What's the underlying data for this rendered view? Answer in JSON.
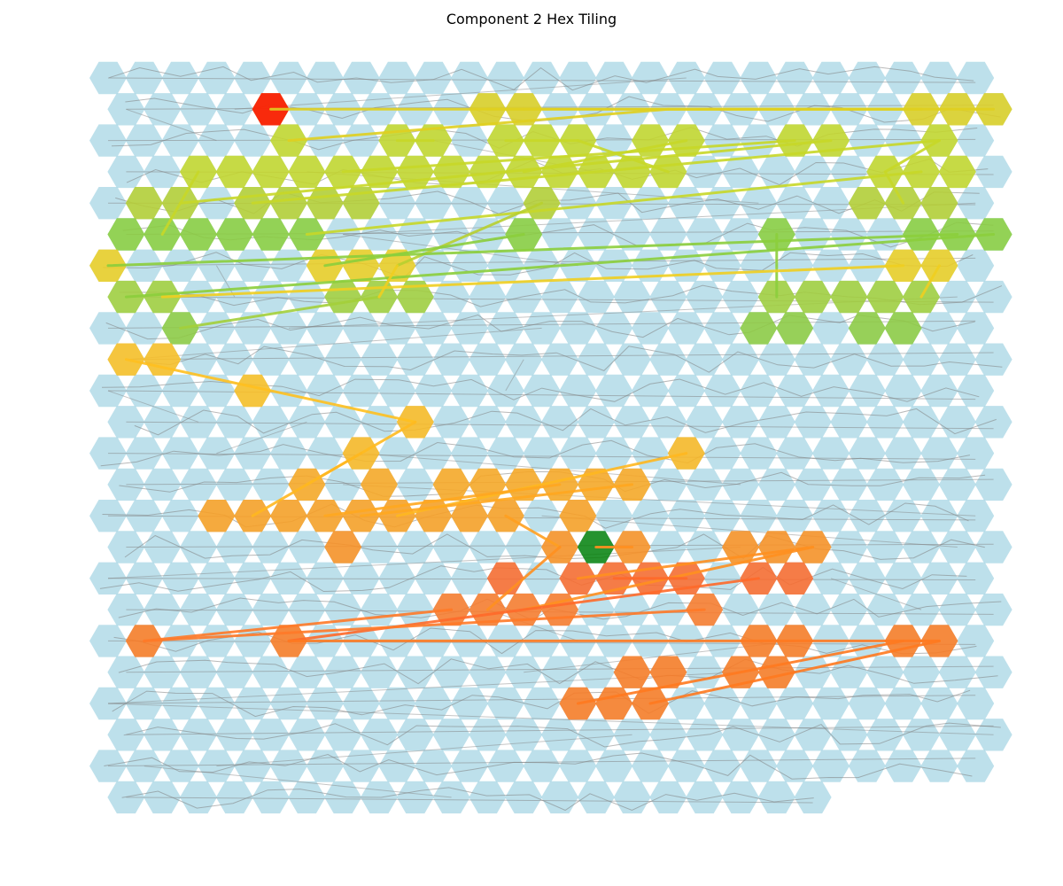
{
  "title": "Component 2 Hex Tiling",
  "colors": {
    "background_hex": "#add8e6",
    "background_path": "#808080",
    "start_hex": "#ff0000",
    "end_hex": "#008000"
  },
  "chart_data": {
    "type": "hex-tiling",
    "title": "Component 2 Hex Tiling",
    "grid": {
      "rows": 24,
      "cols": 25,
      "last_row_cols": 20,
      "odd_row_offset": true
    },
    "start": {
      "row": 1,
      "col": 4
    },
    "end": {
      "row": 15,
      "col": 13
    },
    "path": [
      [
        1,
        4
      ],
      [
        1,
        10
      ],
      [
        1,
        11
      ],
      [
        1,
        22
      ],
      [
        1,
        23
      ],
      [
        1,
        24
      ],
      [
        2,
        5
      ],
      [
        2,
        8
      ],
      [
        2,
        9
      ],
      [
        2,
        11
      ],
      [
        2,
        12
      ],
      [
        2,
        13
      ],
      [
        2,
        15
      ],
      [
        2,
        16
      ],
      [
        2,
        19
      ],
      [
        2,
        20
      ],
      [
        2,
        23
      ],
      [
        3,
        2
      ],
      [
        3,
        3
      ],
      [
        3,
        4
      ],
      [
        3,
        5
      ],
      [
        3,
        6
      ],
      [
        3,
        7
      ],
      [
        3,
        8
      ],
      [
        3,
        9
      ],
      [
        3,
        10
      ],
      [
        3,
        11
      ],
      [
        3,
        12
      ],
      [
        3,
        13
      ],
      [
        3,
        14
      ],
      [
        3,
        15
      ],
      [
        3,
        21
      ],
      [
        3,
        22
      ],
      [
        3,
        23
      ],
      [
        4,
        1
      ],
      [
        4,
        2
      ],
      [
        4,
        4
      ],
      [
        4,
        5
      ],
      [
        4,
        6
      ],
      [
        4,
        7
      ],
      [
        4,
        12
      ],
      [
        4,
        21
      ],
      [
        4,
        22
      ],
      [
        4,
        23
      ],
      [
        5,
        0
      ],
      [
        5,
        1
      ],
      [
        5,
        2
      ],
      [
        5,
        3
      ],
      [
        5,
        4
      ],
      [
        5,
        5
      ],
      [
        5,
        11
      ],
      [
        5,
        18
      ],
      [
        5,
        22
      ],
      [
        5,
        23
      ],
      [
        5,
        24
      ],
      [
        6,
        0
      ],
      [
        6,
        6
      ],
      [
        6,
        7
      ],
      [
        6,
        8
      ],
      [
        6,
        22
      ],
      [
        6,
        23
      ],
      [
        7,
        0
      ],
      [
        7,
        1
      ],
      [
        7,
        6
      ],
      [
        7,
        7
      ],
      [
        7,
        8
      ],
      [
        7,
        18
      ],
      [
        7,
        19
      ],
      [
        7,
        20
      ],
      [
        7,
        21
      ],
      [
        7,
        22
      ],
      [
        8,
        2
      ],
      [
        8,
        18
      ],
      [
        8,
        19
      ],
      [
        8,
        21
      ],
      [
        8,
        22
      ],
      [
        9,
        0
      ],
      [
        9,
        1
      ],
      [
        10,
        4
      ],
      [
        11,
        8
      ],
      [
        12,
        7
      ],
      [
        12,
        16
      ],
      [
        13,
        5
      ],
      [
        13,
        7
      ],
      [
        13,
        9
      ],
      [
        13,
        10
      ],
      [
        13,
        11
      ],
      [
        13,
        12
      ],
      [
        13,
        13
      ],
      [
        13,
        14
      ],
      [
        14,
        3
      ],
      [
        14,
        4
      ],
      [
        14,
        5
      ],
      [
        14,
        6
      ],
      [
        14,
        7
      ],
      [
        14,
        8
      ],
      [
        14,
        9
      ],
      [
        14,
        10
      ],
      [
        14,
        11
      ],
      [
        14,
        13
      ],
      [
        15,
        6
      ],
      [
        15,
        12
      ],
      [
        15,
        14
      ],
      [
        15,
        17
      ],
      [
        15,
        18
      ],
      [
        15,
        19
      ],
      [
        16,
        11
      ],
      [
        16,
        13
      ],
      [
        16,
        14
      ],
      [
        16,
        15
      ],
      [
        16,
        16
      ],
      [
        16,
        18
      ],
      [
        16,
        19
      ],
      [
        17,
        9
      ],
      [
        17,
        10
      ],
      [
        17,
        11
      ],
      [
        17,
        12
      ],
      [
        17,
        16
      ],
      [
        18,
        1
      ],
      [
        18,
        5
      ],
      [
        18,
        18
      ],
      [
        18,
        19
      ],
      [
        18,
        22
      ],
      [
        18,
        23
      ],
      [
        19,
        14
      ],
      [
        19,
        15
      ],
      [
        19,
        17
      ],
      [
        19,
        18
      ],
      [
        20,
        13
      ],
      [
        20,
        14
      ],
      [
        20,
        15
      ]
    ],
    "path_links": [
      [
        [
          1,
          4
        ],
        [
          1,
          11
        ]
      ],
      [
        [
          1,
          10
        ],
        [
          1,
          24
        ]
      ],
      [
        [
          1,
          11
        ],
        [
          1,
          22
        ]
      ],
      [
        [
          2,
          5
        ],
        [
          1,
          15
        ]
      ],
      [
        [
          1,
          15
        ],
        [
          1,
          22
        ]
      ],
      [
        [
          2,
          8
        ],
        [
          2,
          9
        ]
      ],
      [
        [
          2,
          11
        ],
        [
          2,
          13
        ]
      ],
      [
        [
          2,
          13
        ],
        [
          3,
          15
        ]
      ],
      [
        [
          2,
          16
        ],
        [
          3,
          11
        ]
      ],
      [
        [
          2,
          19
        ],
        [
          3,
          6
        ]
      ],
      [
        [
          2,
          20
        ],
        [
          4,
          2
        ]
      ],
      [
        [
          2,
          23
        ],
        [
          4,
          4
        ]
      ],
      [
        [
          3,
          2
        ],
        [
          5,
          1
        ]
      ],
      [
        [
          3,
          22
        ],
        [
          5,
          5
        ]
      ],
      [
        [
          3,
          21
        ],
        [
          4,
          22
        ]
      ],
      [
        [
          2,
          23
        ],
        [
          3,
          21
        ]
      ],
      [
        [
          4,
          12
        ],
        [
          6,
          8
        ]
      ],
      [
        [
          5,
          11
        ],
        [
          6,
          6
        ]
      ],
      [
        [
          5,
          18
        ],
        [
          7,
          18
        ]
      ],
      [
        [
          5,
          23
        ],
        [
          6,
          0
        ]
      ],
      [
        [
          5,
          24
        ],
        [
          7,
          0
        ]
      ],
      [
        [
          6,
          22
        ],
        [
          7,
          1
        ]
      ],
      [
        [
          6,
          23
        ],
        [
          7,
          22
        ]
      ],
      [
        [
          7,
          7
        ],
        [
          8,
          2
        ]
      ],
      [
        [
          6,
          8
        ],
        [
          7,
          7
        ]
      ],
      [
        [
          9,
          0
        ],
        [
          11,
          8
        ]
      ],
      [
        [
          11,
          8
        ],
        [
          13,
          5
        ]
      ],
      [
        [
          12,
          7
        ],
        [
          14,
          4
        ]
      ],
      [
        [
          12,
          16
        ],
        [
          14,
          8
        ]
      ],
      [
        [
          13,
          12
        ],
        [
          14,
          6
        ]
      ],
      [
        [
          13,
          14
        ],
        [
          14,
          7
        ]
      ],
      [
        [
          14,
          11
        ],
        [
          15,
          12
        ]
      ],
      [
        [
          15,
          12
        ],
        [
          17,
          10
        ]
      ],
      [
        [
          15,
          13
        ],
        [
          15,
          14
        ]
      ],
      [
        [
          15,
          19
        ],
        [
          17,
          11
        ]
      ],
      [
        [
          16,
          16
        ],
        [
          16,
          14
        ]
      ],
      [
        [
          16,
          18
        ],
        [
          18,
          5
        ]
      ],
      [
        [
          17,
          16
        ],
        [
          18,
          1
        ]
      ],
      [
        [
          17,
          9
        ],
        [
          18,
          1
        ]
      ],
      [
        [
          18,
          5
        ],
        [
          18,
          23
        ]
      ],
      [
        [
          18,
          22
        ],
        [
          20,
          13
        ]
      ],
      [
        [
          18,
          23
        ],
        [
          20,
          15
        ]
      ],
      [
        [
          15,
          19
        ],
        [
          16,
          13
        ]
      ]
    ],
    "path_colors": {
      "row_1": "#e0d020",
      "row_2": "#c8d828",
      "row_3": "#c8d828",
      "row_4": "#b8d030",
      "row_5": "#8ccf3c",
      "row_6": "#f0cf20",
      "row_7": "#a4d03a",
      "row_8": "#90cc40",
      "row_9": "#ffc020",
      "row_10": "#ffc020",
      "row_11": "#ffbb20",
      "row_12": "#ffb820",
      "row_13": "#ffa820",
      "row_14": "#ffa020",
      "row_15": "#ff9020",
      "row_16": "#ff6a2a",
      "row_17": "#ff7a28",
      "row_18": "#ff7a20",
      "row_19": "#ff7a20",
      "row_20": "#ff7a20"
    }
  }
}
